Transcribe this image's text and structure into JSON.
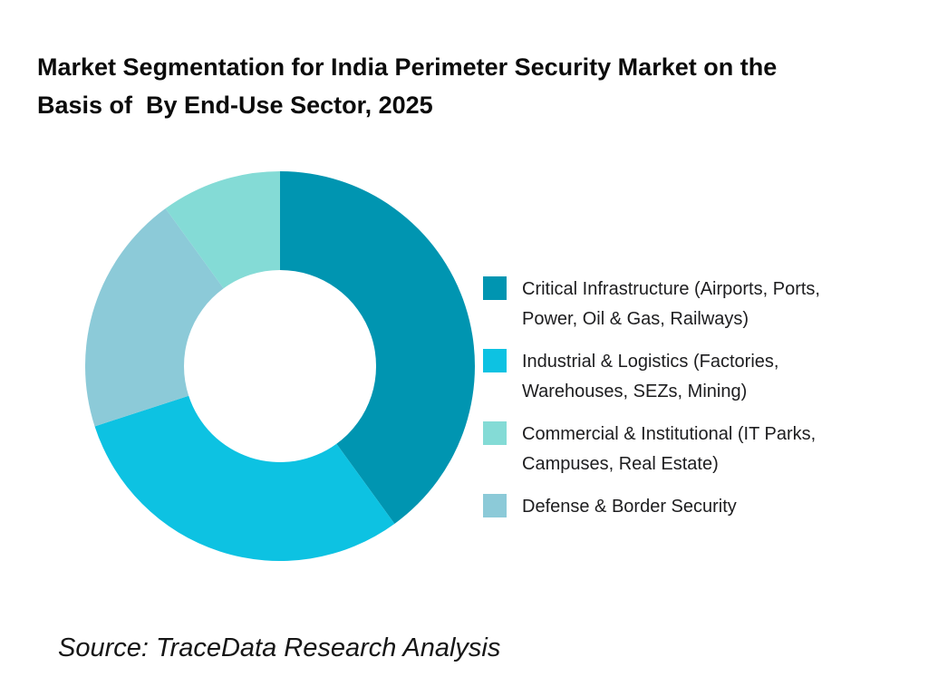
{
  "page": {
    "title_display": "Market Segmentation for India Perimeter Security Market on the\nBasis of  By End-Use Sector, 2025",
    "source": "Source: TraceData Research Analysis",
    "background": "#FFFFFF"
  },
  "chart_data": {
    "type": "pie",
    "subtype": "donut",
    "title": "Market Segmentation for India Perimeter Security Market on the Basis of By End-Use Sector, 2025",
    "unit": "% share (estimated from arc angles)",
    "direction": "clockwise",
    "start_angle_deg": 0,
    "inner_radius_ratio": 0.493,
    "legend_position": "right",
    "segments": [
      {
        "label": "Critical Infrastructure (Airports, Ports, Power, Oil & Gas, Railways)",
        "value": 40,
        "color": "#0095B1"
      },
      {
        "label": "Industrial & Logistics (Factories, Warehouses, SEZs, Mining)",
        "value": 30,
        "color": "#0DC2E2"
      },
      {
        "label": "Defense & Border Security",
        "value": 20,
        "color": "#8CCAD8"
      },
      {
        "label": "Commercial & Institutional (IT Parks, Campuses, Real Estate)",
        "value": 10,
        "color": "#84DBD6"
      }
    ]
  },
  "legend": {
    "items": [
      {
        "label": "Critical Infrastructure (Airports, Ports,\nPower, Oil & Gas, Railways)",
        "color": "#0095B1"
      },
      {
        "label": "Industrial & Logistics (Factories,\nWarehouses, SEZs, Mining)",
        "color": "#0DC2E2"
      },
      {
        "label": "Commercial & Institutional (IT Parks,\nCampuses, Real Estate)",
        "color": "#84DBD6"
      },
      {
        "label": "Defense & Border Security",
        "color": "#8CCAD8"
      }
    ]
  }
}
